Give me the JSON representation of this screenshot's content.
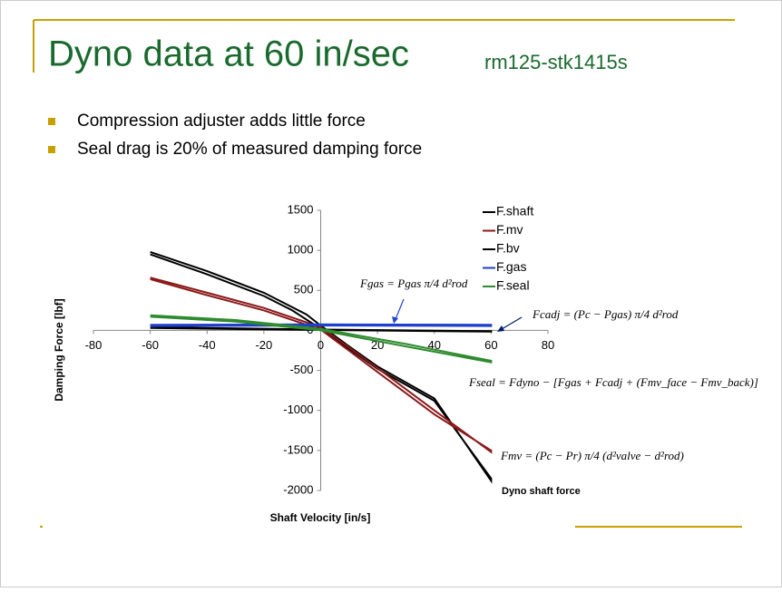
{
  "slide": {
    "title": "Dyno data at 60 in/sec",
    "subtitle": "rm125-stk1415s",
    "bullets": [
      "Compression adjuster adds little force",
      "Seal drag is 20% of measured damping force"
    ]
  },
  "chart_data": {
    "type": "line",
    "xlabel": "Shaft Velocity [in/s]",
    "ylabel": "Damping Force [lbf]",
    "xlim": [
      -80,
      80
    ],
    "xticks": [
      -80,
      -60,
      -40,
      -20,
      0,
      20,
      40,
      60,
      80
    ],
    "ylim": [
      -2000,
      1500
    ],
    "yticks": [
      -2000,
      -1500,
      -1000,
      -500,
      0,
      500,
      1000,
      1500
    ],
    "series": [
      {
        "name": "F.shaft",
        "color": "#000000",
        "x": [
          -60,
          -40,
          -20,
          -5,
          0,
          10,
          20,
          40,
          60,
          60,
          40,
          20,
          10,
          0,
          -10,
          -20,
          -40,
          -60
        ],
        "values": [
          980,
          740,
          470,
          200,
          60,
          -200,
          -450,
          -850,
          -1880,
          -1850,
          -880,
          -480,
          -230,
          20,
          250,
          430,
          700,
          950
        ]
      },
      {
        "name": "F.mv",
        "color": "#8b1a1a",
        "x": [
          -60,
          -40,
          -20,
          0,
          20,
          40,
          60,
          60,
          40,
          20,
          0,
          -20,
          -40,
          -60
        ],
        "values": [
          660,
          470,
          280,
          40,
          -470,
          -1000,
          -1520,
          -1500,
          -1050,
          -520,
          10,
          250,
          440,
          640
        ]
      },
      {
        "name": "F.bv",
        "color": "#000000",
        "x": [
          -60,
          0,
          60,
          60,
          0,
          -60
        ],
        "values": [
          40,
          10,
          -10,
          -15,
          5,
          30
        ]
      },
      {
        "name": "F.gas",
        "color": "#1f3fcf",
        "x": [
          -60,
          0,
          60,
          60,
          0,
          -60
        ],
        "values": [
          55,
          60,
          55,
          70,
          75,
          70
        ]
      },
      {
        "name": "F.seal",
        "color": "#2e8b2e",
        "x": [
          -60,
          -30,
          0,
          30,
          60,
          60,
          30,
          0,
          -30,
          -60
        ],
        "values": [
          190,
          130,
          20,
          -170,
          -380,
          -400,
          -200,
          0,
          110,
          170
        ]
      }
    ],
    "annotations": [
      "Fgas = Pgas π/4 d²rod",
      "Fcadj = (Pc − Pgas) π/4 d²rod",
      "Fseal = Fdyno − [Fgas + Fcadj + (Fmv_face − Fmv_back)]",
      "Fmv = (Pc − Pr) π/4 (d²valve − d²rod)",
      "Dyno shaft force"
    ]
  }
}
